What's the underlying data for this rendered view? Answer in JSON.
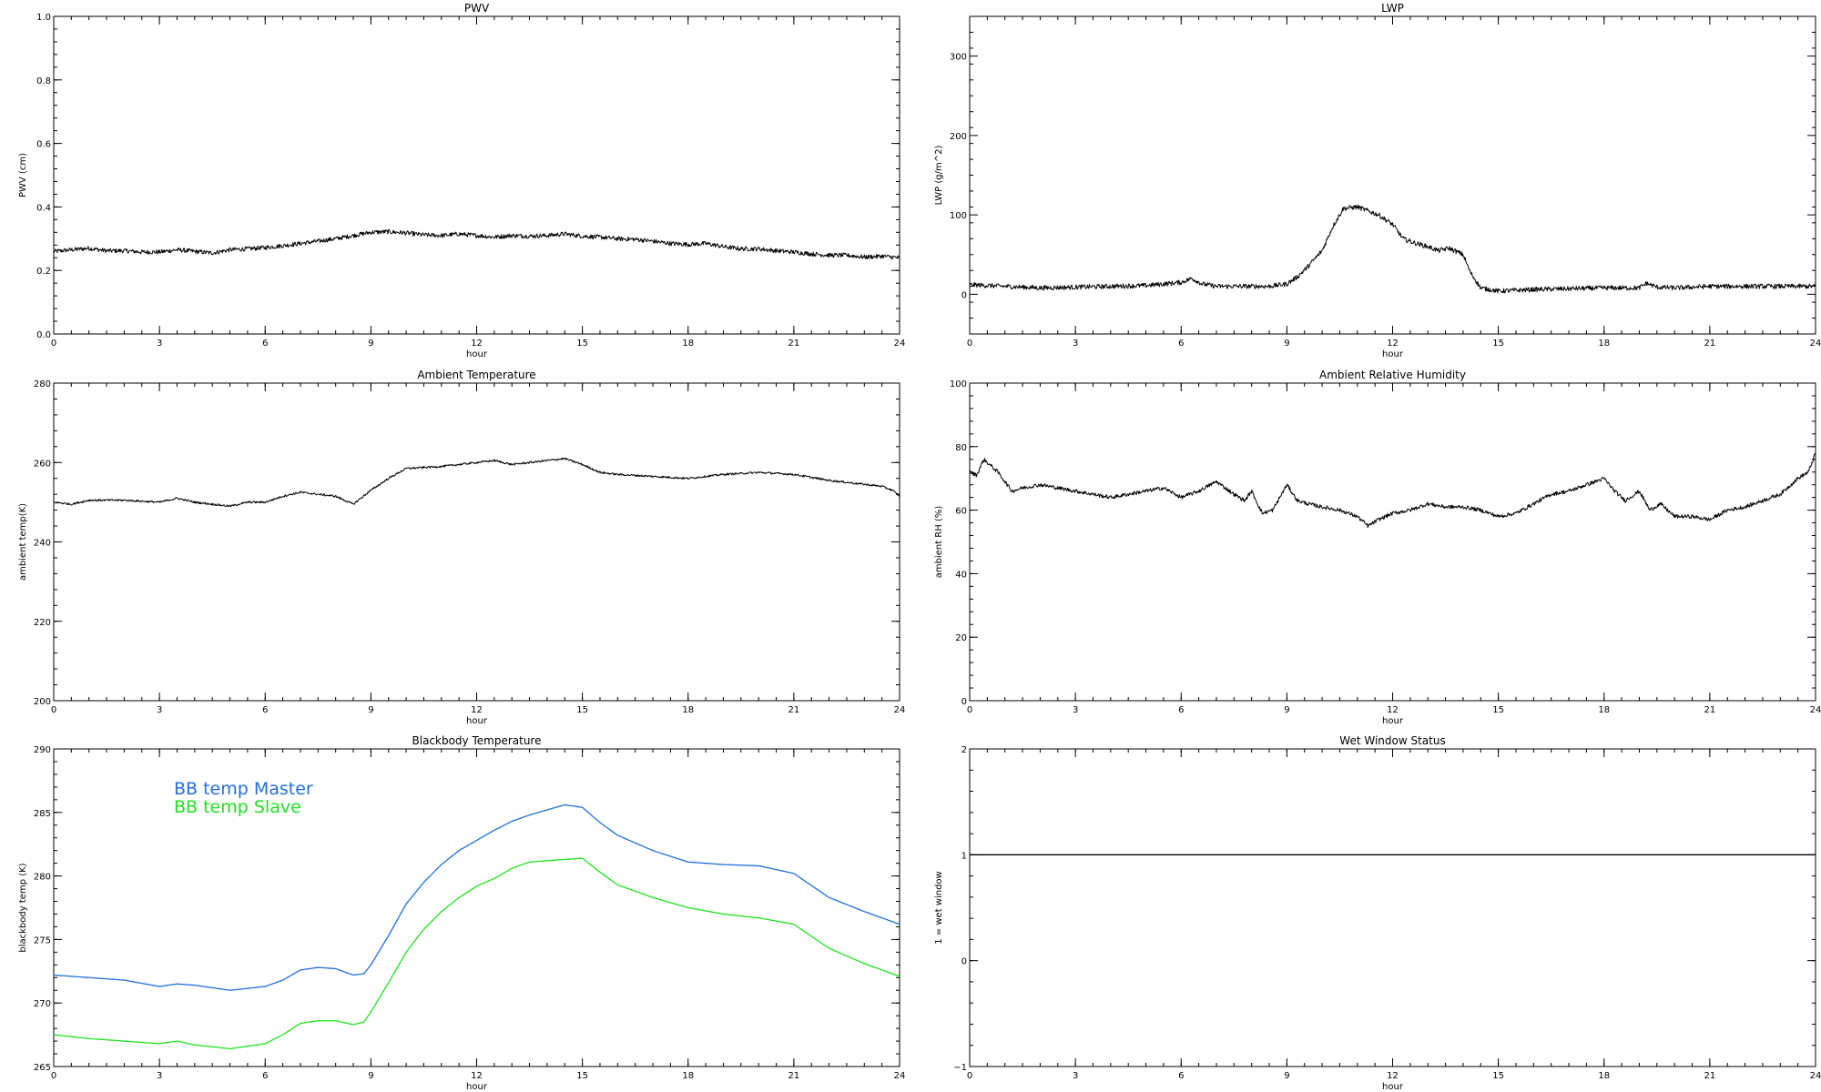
{
  "chart_data": [
    {
      "type": "line",
      "title": "PWV",
      "xlabel": "hour",
      "ylabel": "PWV (cm)",
      "xlim": [
        0,
        24
      ],
      "ylim": [
        0,
        1
      ],
      "xticks": [
        0,
        3,
        6,
        9,
        12,
        15,
        18,
        21,
        24
      ],
      "xtick_labels": [
        "0",
        "3",
        "6",
        "9",
        "12",
        "15",
        "18",
        "21",
        "24"
      ],
      "yticks": [
        0,
        0.2,
        0.4,
        0.6,
        0.8,
        1
      ],
      "ytick_labels": [
        "0.0",
        "0.2",
        "0.4",
        "0.6",
        "0.8",
        "1.0"
      ],
      "series": [
        {
          "color": "#000000",
          "noise": 0.007,
          "x": [
            0,
            0.5,
            1,
            1.5,
            2,
            2.5,
            3,
            3.5,
            4,
            4.5,
            5,
            5.5,
            6,
            6.5,
            7,
            7.5,
            8,
            8.5,
            9,
            9.5,
            10,
            10.5,
            11,
            11.5,
            12,
            12.5,
            13,
            13.5,
            14,
            14.5,
            15,
            15.5,
            16,
            16.5,
            17,
            17.5,
            18,
            18.5,
            19,
            19.5,
            20,
            20.5,
            21,
            21.5,
            22,
            22.5,
            23,
            23.5,
            24
          ],
          "values": [
            0.26,
            0.265,
            0.27,
            0.262,
            0.262,
            0.258,
            0.258,
            0.265,
            0.26,
            0.255,
            0.265,
            0.268,
            0.272,
            0.278,
            0.285,
            0.292,
            0.3,
            0.31,
            0.32,
            0.322,
            0.318,
            0.312,
            0.31,
            0.315,
            0.31,
            0.305,
            0.31,
            0.308,
            0.31,
            0.315,
            0.308,
            0.305,
            0.3,
            0.298,
            0.292,
            0.285,
            0.282,
            0.285,
            0.275,
            0.268,
            0.268,
            0.262,
            0.258,
            0.252,
            0.248,
            0.248,
            0.242,
            0.245,
            0.24
          ]
        }
      ]
    },
    {
      "type": "line",
      "title": "LWP",
      "xlabel": "hour",
      "ylabel": "LWP (g/m^2)",
      "xlim": [
        0,
        24
      ],
      "ylim": [
        -50,
        350
      ],
      "xticks": [
        0,
        3,
        6,
        9,
        12,
        15,
        18,
        21,
        24
      ],
      "xtick_labels": [
        "0",
        "3",
        "6",
        "9",
        "12",
        "15",
        "18",
        "21",
        "24"
      ],
      "yticks": [
        0,
        100,
        200,
        300
      ],
      "ytick_labels": [
        "0",
        "100",
        "200",
        "300"
      ],
      "series": [
        {
          "color": "#000000",
          "noise": 3,
          "x": [
            0,
            1,
            2,
            3,
            4,
            5,
            6,
            6.3,
            6.6,
            7,
            8,
            8.5,
            9,
            9.3,
            9.6,
            10,
            10.3,
            10.6,
            11,
            11.3,
            11.6,
            12,
            12.3,
            12.6,
            13,
            13.3,
            13.6,
            14,
            14.2,
            14.5,
            15,
            16,
            17,
            18,
            19,
            19.2,
            19.5,
            20,
            21,
            22,
            23,
            24
          ],
          "values": [
            12,
            10,
            8,
            9,
            10,
            11,
            15,
            20,
            13,
            10,
            10,
            10,
            13,
            22,
            35,
            55,
            85,
            108,
            110,
            105,
            100,
            88,
            70,
            65,
            60,
            55,
            58,
            50,
            28,
            8,
            4,
            6,
            7,
            8,
            8,
            14,
            9,
            8,
            10,
            10,
            10,
            10
          ]
        }
      ]
    },
    {
      "type": "line",
      "title": "Ambient Temperature",
      "xlabel": "hour",
      "ylabel": "ambient temp(K)",
      "xlim": [
        0,
        24
      ],
      "ylim": [
        200,
        280
      ],
      "xticks": [
        0,
        3,
        6,
        9,
        12,
        15,
        18,
        21,
        24
      ],
      "xtick_labels": [
        "0",
        "3",
        "6",
        "9",
        "12",
        "15",
        "18",
        "21",
        "24"
      ],
      "yticks": [
        200,
        220,
        240,
        260,
        280
      ],
      "ytick_labels": [
        "200",
        "220",
        "240",
        "260",
        "280"
      ],
      "series": [
        {
          "color": "#000000",
          "noise": 0.25,
          "x": [
            0,
            0.5,
            1,
            2,
            3,
            3.5,
            4,
            4.5,
            5,
            5.5,
            6,
            6.5,
            7,
            7.5,
            8,
            8.5,
            9,
            9.5,
            10,
            11,
            12,
            12.5,
            13,
            13.5,
            14,
            14.5,
            15,
            15.5,
            16,
            17,
            18,
            19,
            20,
            21,
            22,
            23,
            23.5,
            23.8,
            24
          ],
          "values": [
            250,
            249.5,
            250.5,
            250.5,
            250,
            251,
            250,
            249.5,
            249,
            250,
            250,
            251.5,
            252.5,
            252,
            251.5,
            249.5,
            253,
            256,
            258.5,
            259,
            260,
            260.5,
            259.5,
            260,
            260.5,
            261,
            259.5,
            257.5,
            257,
            256.5,
            256,
            257,
            257.5,
            257,
            255.5,
            254.5,
            254,
            253,
            251.5
          ]
        }
      ]
    },
    {
      "type": "line",
      "title": "Ambient Relative Humidity",
      "xlabel": "hour",
      "ylabel": "ambient RH (%)",
      "xlim": [
        0,
        24
      ],
      "ylim": [
        0,
        100
      ],
      "xticks": [
        0,
        3,
        6,
        9,
        12,
        15,
        18,
        21,
        24
      ],
      "xtick_labels": [
        "0",
        "3",
        "6",
        "9",
        "12",
        "15",
        "18",
        "21",
        "24"
      ],
      "yticks": [
        0,
        20,
        40,
        60,
        80,
        100
      ],
      "ytick_labels": [
        "0",
        "20",
        "40",
        "60",
        "80",
        "100"
      ],
      "series": [
        {
          "color": "#000000",
          "noise": 0.6,
          "x": [
            0,
            0.2,
            0.4,
            0.6,
            0.8,
            1,
            1.2,
            1.5,
            2,
            2.5,
            3,
            3.5,
            4,
            4.5,
            5,
            5.5,
            6,
            6.5,
            7,
            7.5,
            7.8,
            8,
            8.3,
            8.6,
            9,
            9.3,
            9.6,
            10,
            10.5,
            11,
            11.3,
            11.6,
            12,
            12.5,
            13,
            13.5,
            14,
            14.5,
            15,
            15.5,
            16,
            16.5,
            17,
            17.5,
            18,
            18.3,
            18.6,
            19,
            19.3,
            19.6,
            20,
            20.5,
            21,
            21.5,
            22,
            22.5,
            23,
            23.5,
            23.8,
            24
          ],
          "values": [
            72,
            71,
            76,
            74,
            72,
            69,
            66,
            67,
            68,
            67,
            66,
            65,
            64,
            65,
            66,
            67,
            64,
            66,
            69,
            65,
            63,
            66,
            59,
            60,
            68,
            63,
            62,
            61,
            60,
            58,
            55,
            57,
            59,
            60,
            62,
            61,
            61,
            60,
            58,
            59,
            62,
            65,
            66,
            68,
            70,
            66,
            63,
            66,
            60,
            62,
            58,
            58,
            57,
            60,
            61,
            63,
            65,
            70,
            72,
            78
          ]
        }
      ]
    },
    {
      "type": "line",
      "title": "Blackbody Temperature",
      "xlabel": "hour",
      "ylabel": "blackbody temp (K)",
      "xlim": [
        0,
        24
      ],
      "ylim": [
        265,
        290
      ],
      "xticks": [
        0,
        3,
        6,
        9,
        12,
        15,
        18,
        21,
        24
      ],
      "xtick_labels": [
        "0",
        "3",
        "6",
        "9",
        "12",
        "15",
        "18",
        "21",
        "24"
      ],
      "yticks": [
        265,
        270,
        275,
        280,
        285,
        290
      ],
      "ytick_labels": [
        "265",
        "270",
        "275",
        "280",
        "285",
        "290"
      ],
      "legend": [
        "BB temp Master",
        "BB temp Slave"
      ],
      "series": [
        {
          "name": "BB temp Master",
          "color": "#1f6fe0",
          "noise": 0,
          "x": [
            0,
            1,
            2,
            3,
            3.5,
            4,
            5,
            6,
            6.5,
            7,
            7.5,
            8,
            8.5,
            8.8,
            9,
            9.5,
            10,
            10.5,
            11,
            11.5,
            12,
            12.5,
            13,
            13.5,
            14,
            14.5,
            15,
            15.5,
            16,
            17,
            18,
            19,
            20,
            21,
            22,
            23,
            24
          ],
          "values": [
            272.2,
            272,
            271.8,
            271.3,
            271.5,
            271.4,
            271,
            271.3,
            271.8,
            272.6,
            272.8,
            272.7,
            272.2,
            272.3,
            273,
            275.3,
            277.8,
            279.5,
            280.9,
            282,
            282.8,
            283.6,
            284.3,
            284.8,
            285.2,
            285.6,
            285.4,
            284.2,
            283.2,
            282,
            281.1,
            280.9,
            280.8,
            280.2,
            278.3,
            277.2,
            276.2
          ]
        },
        {
          "name": "BB temp Slave",
          "color": "#1ee31e",
          "noise": 0,
          "x": [
            0,
            1,
            2,
            3,
            3.5,
            4,
            5,
            6,
            6.5,
            7,
            7.5,
            8,
            8.5,
            8.8,
            9,
            9.5,
            10,
            10.5,
            11,
            11.5,
            12,
            12.5,
            13,
            13.5,
            14,
            14.5,
            15,
            15.5,
            16,
            17,
            18,
            19,
            20,
            21,
            22,
            23,
            24
          ],
          "values": [
            267.5,
            267.2,
            267,
            266.8,
            267,
            266.7,
            266.4,
            266.8,
            267.5,
            268.4,
            268.6,
            268.6,
            268.3,
            268.5,
            269.3,
            271.6,
            274,
            275.8,
            277.2,
            278.3,
            279.2,
            279.8,
            280.6,
            281.1,
            281.2,
            281.3,
            281.4,
            280.3,
            279.3,
            278.3,
            277.5,
            277.0,
            276.7,
            276.2,
            274.3,
            273.1,
            272.1
          ]
        }
      ]
    },
    {
      "type": "line",
      "title": "Wet Window Status",
      "xlabel": "hour",
      "ylabel": "1 = wet window",
      "xlim": [
        0,
        24
      ],
      "ylim": [
        -1,
        2
      ],
      "xticks": [
        0,
        3,
        6,
        9,
        12,
        15,
        18,
        21,
        24
      ],
      "xtick_labels": [
        "0",
        "3",
        "6",
        "9",
        "12",
        "15",
        "18",
        "21",
        "24"
      ],
      "yticks": [
        -1,
        0,
        1,
        2
      ],
      "ytick_labels": [
        "−1",
        "0",
        "1",
        "2"
      ],
      "series": [
        {
          "color": "#000000",
          "noise": 0,
          "x": [
            0,
            24
          ],
          "values": [
            1,
            1
          ]
        }
      ]
    }
  ]
}
